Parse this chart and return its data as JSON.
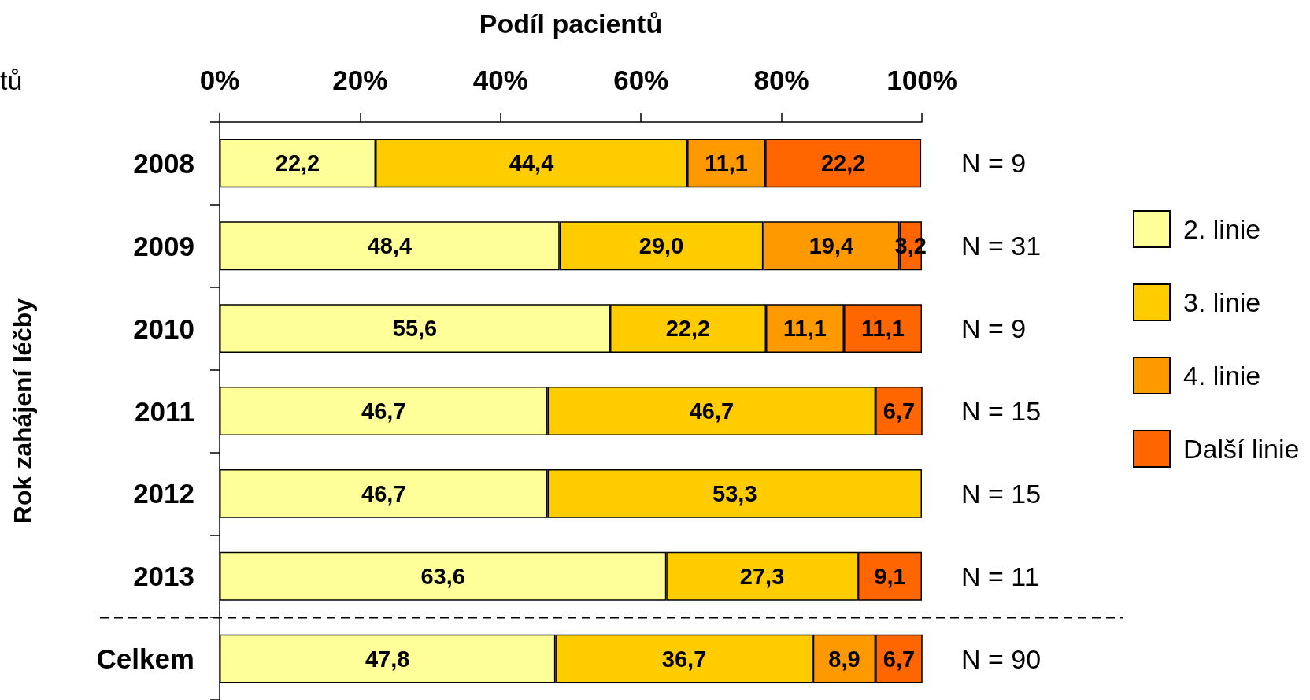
{
  "chart_data": {
    "type": "bar",
    "orientation": "horizontal",
    "stacked": true,
    "xlabel": "Podíl pacientů",
    "ylabel": "Rok zahájení léčby",
    "categories": [
      "2008",
      "2009",
      "2010",
      "2011",
      "2012",
      "2013",
      "Celkem"
    ],
    "xlim": [
      0,
      100
    ],
    "xticks": [
      {
        "value": 0,
        "label": "0%"
      },
      {
        "value": 20,
        "label": "20%"
      },
      {
        "value": 40,
        "label": "40%"
      },
      {
        "value": 60,
        "label": "60%"
      },
      {
        "value": 80,
        "label": "80%"
      },
      {
        "value": 100,
        "label": "100%"
      }
    ],
    "series": [
      {
        "name": "2. linie",
        "color": "#ffff99",
        "values": [
          22.2,
          48.4,
          55.6,
          46.7,
          46.7,
          63.6,
          47.8
        ],
        "value_labels": [
          "22,2",
          "48,4",
          "55,6",
          "46,7",
          "46,7",
          "63,6",
          "47,8"
        ]
      },
      {
        "name": "3. linie",
        "color": "#ffcc00",
        "values": [
          44.4,
          29.0,
          22.2,
          46.7,
          53.3,
          27.3,
          36.7
        ],
        "value_labels": [
          "44,4",
          "29,0",
          "22,2",
          "46,7",
          "53,3",
          "27,3",
          "36,7"
        ]
      },
      {
        "name": "4. linie",
        "color": "#ff9900",
        "values": [
          11.1,
          19.4,
          11.1,
          null,
          null,
          null,
          8.9
        ],
        "value_labels": [
          "11,1",
          "19,4",
          "11,1",
          null,
          null,
          null,
          "8,9"
        ]
      },
      {
        "name": "Další linie",
        "color": "#ff6600",
        "values": [
          22.2,
          3.2,
          11.1,
          6.7,
          null,
          9.1,
          6.7
        ],
        "value_labels": [
          "22,2",
          "3,2",
          "11,1",
          "6,7",
          null,
          "9,1",
          "6,7"
        ]
      }
    ],
    "annotations": [
      "N = 9",
      "N = 31",
      "N = 9",
      "N = 15",
      "N = 15",
      "N = 11",
      "N = 90",
      "tů"
    ],
    "legend": "right",
    "grid": false
  }
}
